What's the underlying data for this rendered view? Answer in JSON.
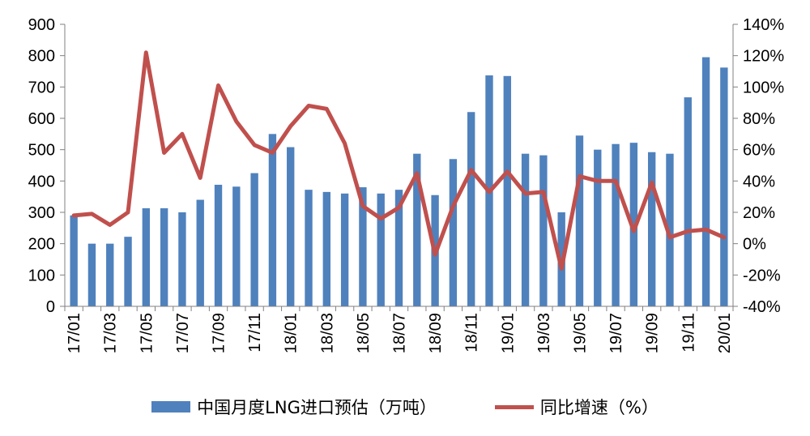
{
  "chart_data": {
    "type": "bar",
    "categories": [
      "17/01",
      "17/02",
      "17/03",
      "17/04",
      "17/05",
      "17/06",
      "17/07",
      "17/08",
      "17/09",
      "17/10",
      "17/11",
      "17/12",
      "18/01",
      "18/02",
      "18/03",
      "18/04",
      "18/05",
      "18/06",
      "18/07",
      "18/08",
      "18/09",
      "18/10",
      "18/11",
      "18/12",
      "19/01",
      "19/02",
      "19/03",
      "19/04",
      "19/05",
      "19/06",
      "19/07",
      "19/08",
      "19/09",
      "19/10",
      "19/11",
      "19/12",
      "20/01"
    ],
    "x_tick_labels": [
      "17/01",
      "17/03",
      "17/05",
      "17/07",
      "17/09",
      "17/11",
      "18/01",
      "18/03",
      "18/05",
      "18/07",
      "18/09",
      "18/11",
      "19/01",
      "19/03",
      "19/05",
      "19/07",
      "19/09",
      "19/11",
      "20/01"
    ],
    "series": [
      {
        "name": "中国月度LNG进口预估（万吨）",
        "kind": "bar",
        "axis": "left",
        "color": "#4f81bd",
        "values": [
          290,
          200,
          200,
          222,
          313,
          313,
          300,
          340,
          388,
          382,
          425,
          550,
          508,
          372,
          365,
          360,
          380,
          360,
          372,
          487,
          355,
          470,
          620,
          737,
          735,
          487,
          482,
          300,
          545,
          500,
          518,
          522,
          492,
          487,
          667,
          795,
          762
        ]
      },
      {
        "name": "同比增速（%）",
        "kind": "line",
        "axis": "right",
        "color": "#c0504d",
        "values": [
          18,
          19,
          12,
          20,
          122,
          58,
          70,
          42,
          101,
          78,
          63,
          58,
          75,
          88,
          86,
          64,
          24,
          16,
          23,
          45,
          -7,
          24,
          47,
          33,
          46,
          32,
          33,
          -16,
          43,
          40,
          40,
          8,
          39,
          4,
          8,
          9,
          4
        ]
      }
    ],
    "y_left": {
      "min": 0,
      "max": 900,
      "step": 100,
      "ticks": [
        "0",
        "100",
        "200",
        "300",
        "400",
        "500",
        "600",
        "700",
        "800",
        "900"
      ]
    },
    "y_right": {
      "min": -40,
      "max": 140,
      "step": 20,
      "ticks": [
        "-40%",
        "-20%",
        "0%",
        "20%",
        "40%",
        "60%",
        "80%",
        "100%",
        "120%",
        "140%"
      ]
    },
    "title": "",
    "xlabel": "",
    "ylabel": "",
    "grid": false,
    "legend_position": "bottom"
  }
}
